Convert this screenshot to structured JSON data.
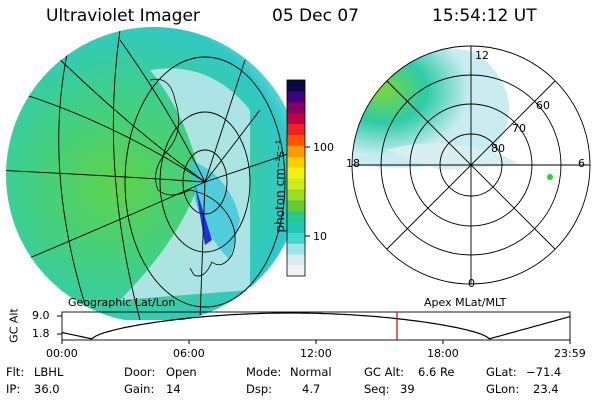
{
  "header": {
    "instrument": "Ultraviolet Imager",
    "date": "05 Dec 07",
    "time": "15:54:12 UT"
  },
  "left_panel": {
    "label": "Geographic Lat/Lon"
  },
  "right_panel": {
    "label": "Apex MLat/MLT",
    "mlt_labels": [
      "12",
      "18",
      "6",
      "0"
    ],
    "mlat_labels": [
      "60",
      "70",
      "80"
    ]
  },
  "colorbar": {
    "label": "photon cm⁻²s⁻¹",
    "ticks": [
      "100",
      "10"
    ],
    "colors": [
      "#f2f2f2",
      "#d8eef4",
      "#9fe6ea",
      "#41d6d2",
      "#1ec8b4",
      "#28c88a",
      "#66cc33",
      "#9edc22",
      "#d0ec1a",
      "#f2f214",
      "#ffcc00",
      "#ff9900",
      "#ff5500",
      "#ee2222",
      "#c00040",
      "#880060",
      "#400080",
      "#0a0a40"
    ]
  },
  "orbit_plot": {
    "ylabel": "GC Alt",
    "yticks": [
      "9.0",
      "1.8"
    ],
    "xticks": [
      "00:00",
      "06:00",
      "12:00",
      "18:00",
      "23:59"
    ],
    "current_marker_time": "15:54",
    "marker_color": "#cc0000"
  },
  "info": {
    "filter_label": "Flt:",
    "filter": "LBHL",
    "ip_label": "IP:",
    "ip": "36.0",
    "door_label": "Door:",
    "door": "Open",
    "gain_label": "Gain:",
    "gain": "14",
    "mode_label": "Mode:",
    "mode": "Normal",
    "dsp_label": "Dsp:",
    "dsp": "4.7",
    "gcalt_label": "GC Alt:",
    "gcalt": "6.6 Re",
    "seq_label": "Seq:",
    "seq": "39",
    "glat_label": "GLat:",
    "glat": "−71.4",
    "glon_label": "GLon:",
    "glon": "23.4"
  }
}
